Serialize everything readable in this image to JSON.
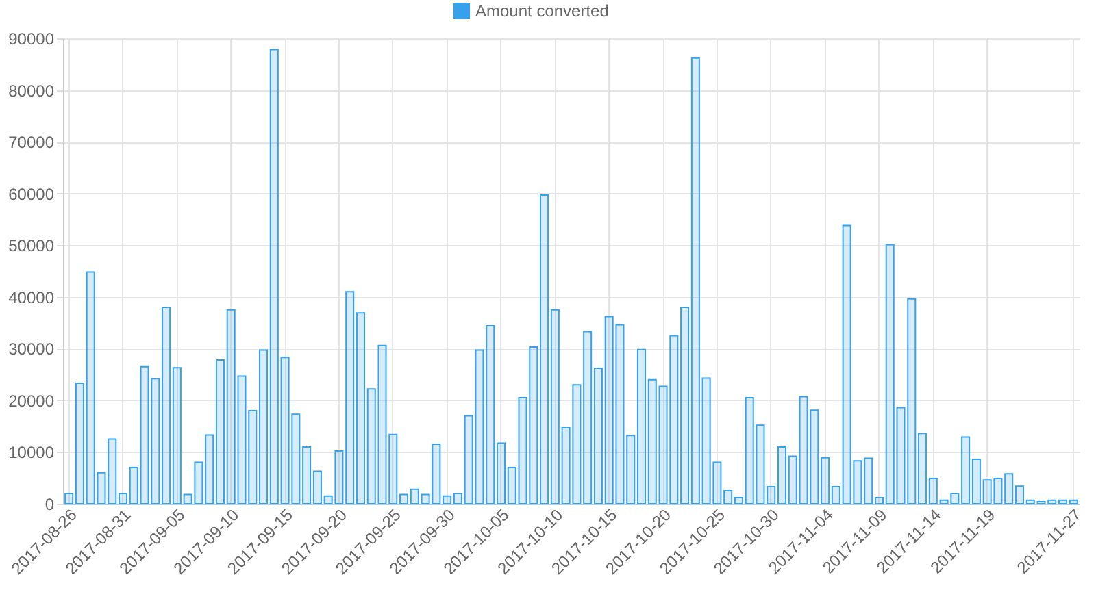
{
  "chart_data": {
    "type": "bar",
    "categories": [
      "2017-08-26",
      null,
      null,
      null,
      null,
      "2017-08-31",
      null,
      null,
      null,
      null,
      "2017-09-05",
      null,
      null,
      null,
      null,
      "2017-09-10",
      null,
      null,
      null,
      null,
      "2017-09-15",
      null,
      null,
      null,
      null,
      "2017-09-20",
      null,
      null,
      null,
      null,
      "2017-09-25",
      null,
      null,
      null,
      null,
      "2017-09-30",
      null,
      null,
      null,
      null,
      "2017-10-05",
      null,
      null,
      null,
      null,
      "2017-10-10",
      null,
      null,
      null,
      null,
      "2017-10-15",
      null,
      null,
      null,
      null,
      "2017-10-20",
      null,
      null,
      null,
      null,
      "2017-10-25",
      null,
      null,
      null,
      null,
      "2017-10-30",
      null,
      null,
      null,
      null,
      "2017-11-04",
      null,
      null,
      null,
      null,
      "2017-11-09",
      null,
      null,
      null,
      null,
      "2017-11-14",
      null,
      null,
      null,
      null,
      "2017-11-19",
      null,
      null,
      null,
      null,
      null,
      null,
      null,
      "2017-11-27"
    ],
    "series": [
      {
        "name": "Amount converted",
        "color": "#36a2eb",
        "values": [
          2000,
          23300,
          44800,
          6000,
          12500,
          2000,
          7000,
          26500,
          24200,
          38000,
          26300,
          1800,
          8000,
          13300,
          27800,
          37500,
          24700,
          18000,
          29700,
          87800,
          28300,
          17300,
          11000,
          6300,
          1500,
          10200,
          41000,
          36900,
          22200,
          30600,
          13400,
          1800,
          2800,
          1800,
          11500,
          1500,
          2000,
          17000,
          29700,
          34400,
          11700,
          7000,
          20500,
          30300,
          59700,
          37500,
          14700,
          23000,
          33300,
          26200,
          36200,
          34600,
          13200,
          29800,
          24000,
          22700,
          32500,
          38000,
          86200,
          24300,
          8000,
          2500,
          1200,
          20500,
          15200,
          3300,
          11000,
          9200,
          20700,
          18100,
          8900,
          3300,
          53800,
          8300,
          8800,
          1200,
          50100,
          18600,
          39600,
          13600,
          4900,
          700,
          2000,
          12900,
          8600,
          4600,
          4900,
          5800,
          3400,
          700,
          400,
          700,
          700,
          700
        ]
      }
    ],
    "ylim": [
      0,
      90000
    ],
    "yticks": [
      0,
      10000,
      20000,
      30000,
      40000,
      50000,
      60000,
      70000,
      80000,
      90000
    ],
    "grid": true,
    "legend": "top"
  }
}
